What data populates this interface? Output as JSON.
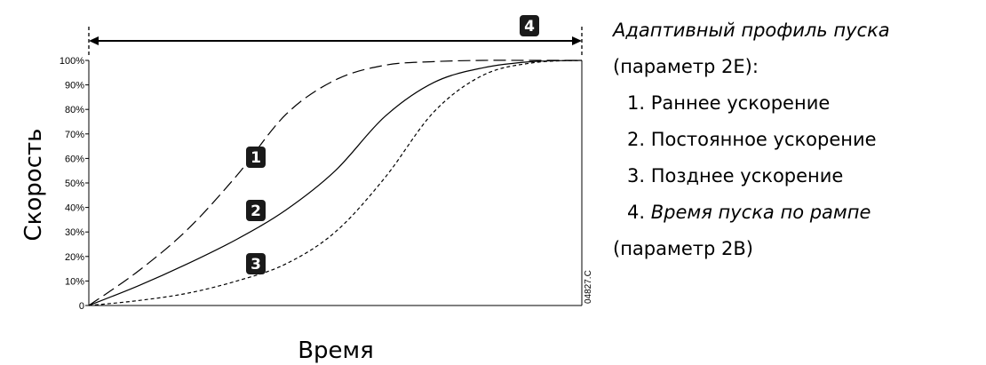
{
  "chart_data": {
    "type": "line",
    "xlabel": "Время",
    "ylabel": "Скорость",
    "yticks": [
      "0",
      "10%",
      "20%",
      "30%",
      "40%",
      "50%",
      "60%",
      "70%",
      "80%",
      "90%",
      "100%"
    ],
    "ylim": [
      0,
      100
    ],
    "xlim": [
      0,
      100
    ],
    "grid": false,
    "code": "04827.C",
    "series": [
      {
        "label": "1",
        "style": "long-dash",
        "x": [
          0,
          10,
          20,
          30,
          40,
          50,
          60,
          70,
          80,
          90,
          100
        ],
        "y": [
          0,
          14,
          31,
          53,
          78,
          92,
          98,
          99.5,
          100,
          100,
          100
        ]
      },
      {
        "label": "2",
        "style": "solid",
        "x": [
          0,
          10,
          20,
          30,
          40,
          50,
          60,
          70,
          80,
          90,
          100
        ],
        "y": [
          0,
          8,
          17,
          27,
          39,
          55,
          77,
          91,
          97,
          99.5,
          100
        ]
      },
      {
        "label": "3",
        "style": "short-dash",
        "x": [
          0,
          10,
          20,
          30,
          40,
          50,
          60,
          70,
          80,
          90,
          100
        ],
        "y": [
          0,
          2,
          5,
          10,
          17,
          30,
          52,
          79,
          94,
          99,
          100
        ]
      }
    ],
    "span_marker": "4"
  },
  "legend": {
    "title": "Адаптивный профиль пуска",
    "param1": "(параметр 2E):",
    "item1": "1. Раннее ускорение",
    "item2": "2. Постоянное ускорение",
    "item3": "3. Позднее ускорение",
    "item4_num": "4. ",
    "item4_text": "Время пуска по рампе",
    "param2": "(параметр 2B)"
  }
}
